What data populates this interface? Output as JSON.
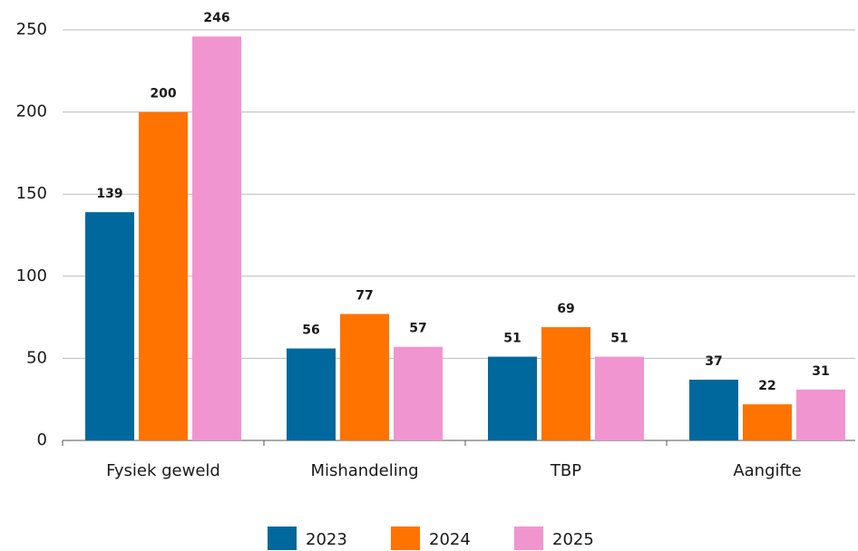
{
  "chart_data": {
    "type": "bar",
    "categories": [
      "Fysiek geweld",
      "Mishandeling",
      "TBP",
      "Aangifte"
    ],
    "series": [
      {
        "name": "2023",
        "color": "#00689c",
        "values": [
          139,
          56,
          51,
          37
        ]
      },
      {
        "name": "2024",
        "color": "#ff7300",
        "values": [
          200,
          77,
          69,
          22
        ]
      },
      {
        "name": "2025",
        "color": "#f095cf",
        "values": [
          246,
          57,
          51,
          31
        ]
      }
    ],
    "ylim": [
      0,
      250
    ],
    "yticks": [
      0,
      50,
      100,
      150,
      200,
      250
    ],
    "grid": true,
    "legend": "bottom"
  }
}
